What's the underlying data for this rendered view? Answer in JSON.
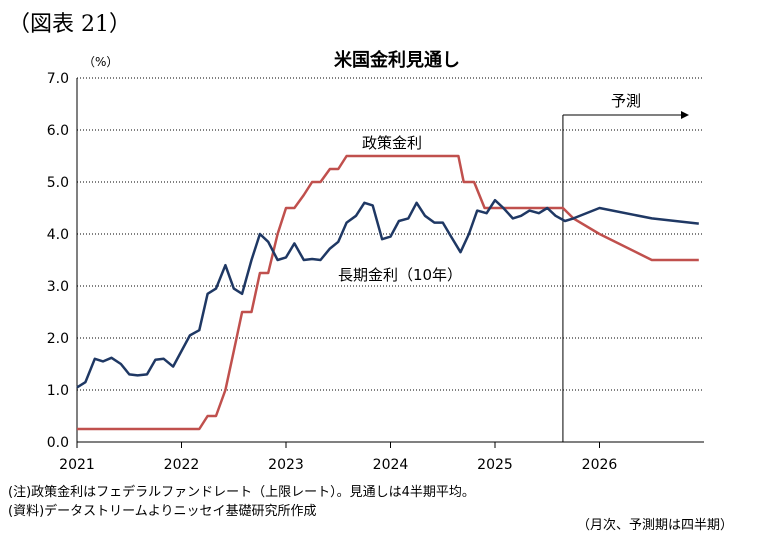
{
  "figure_label": "（図表 21）",
  "notes": {
    "line1": "(注)政策金利はフェデラルファンドレート（上限レート）。見通しは4半期平均。",
    "line2": "(資料)データストリームよりニッセイ基礎研究所作成",
    "right": "（月次、予測期は四半期）"
  },
  "colors": {
    "policy_rate": "#c0504d",
    "long_rate": "#1f3864",
    "grid": "#000000"
  },
  "chart_data": {
    "type": "line",
    "title": "米国金利見通し",
    "ylabel": "（%）",
    "xlabel": "",
    "ylim": [
      0,
      7
    ],
    "xlim": [
      2021,
      2027
    ],
    "yticks": [
      "0.0",
      "1.0",
      "2.0",
      "3.0",
      "4.0",
      "5.0",
      "6.0",
      "7.0"
    ],
    "xticks": [
      "2021",
      "2022",
      "2023",
      "2024",
      "2025",
      "2026"
    ],
    "grid": "horizontal-dotted",
    "legend": "inline-labels",
    "forecast_label": "予測",
    "forecast_start": 2025.65,
    "series": [
      {
        "name": "政策金利",
        "color": "#c0504d",
        "x": [
          2021.0,
          2022.1,
          2022.17,
          2022.25,
          2022.33,
          2022.42,
          2022.5,
          2022.58,
          2022.67,
          2022.75,
          2022.83,
          2022.92,
          2023.0,
          2023.08,
          2023.17,
          2023.25,
          2023.33,
          2023.42,
          2023.5,
          2023.58,
          2024.65,
          2024.7,
          2024.8,
          2024.9,
          2025.65,
          2025.75,
          2026.0,
          2026.5,
          2026.95
        ],
        "values": [
          0.25,
          0.25,
          0.25,
          0.5,
          0.5,
          1.0,
          1.75,
          2.5,
          2.5,
          3.25,
          3.25,
          4.0,
          4.5,
          4.5,
          4.75,
          5.0,
          5.0,
          5.25,
          5.25,
          5.5,
          5.5,
          5.0,
          5.0,
          4.5,
          4.5,
          4.3,
          4.0,
          3.5,
          3.5
        ]
      },
      {
        "name": "長期金利（10年）",
        "color": "#1f3864",
        "x": [
          2021.0,
          2021.08,
          2021.17,
          2021.25,
          2021.33,
          2021.42,
          2021.5,
          2021.58,
          2021.67,
          2021.75,
          2021.83,
          2021.92,
          2022.0,
          2022.08,
          2022.17,
          2022.25,
          2022.33,
          2022.42,
          2022.5,
          2022.58,
          2022.67,
          2022.75,
          2022.83,
          2022.92,
          2023.0,
          2023.08,
          2023.17,
          2023.25,
          2023.33,
          2023.42,
          2023.5,
          2023.58,
          2023.67,
          2023.75,
          2023.83,
          2023.92,
          2024.0,
          2024.08,
          2024.17,
          2024.25,
          2024.33,
          2024.42,
          2024.5,
          2024.58,
          2024.67,
          2024.75,
          2024.83,
          2024.92,
          2025.0,
          2025.08,
          2025.17,
          2025.25,
          2025.33,
          2025.42,
          2025.5,
          2025.58,
          2025.67,
          2025.75,
          2026.0,
          2026.5,
          2026.95
        ],
        "values": [
          1.05,
          1.15,
          1.6,
          1.55,
          1.62,
          1.5,
          1.3,
          1.28,
          1.3,
          1.58,
          1.6,
          1.45,
          1.75,
          2.05,
          2.15,
          2.85,
          2.95,
          3.4,
          2.95,
          2.85,
          3.5,
          4.0,
          3.85,
          3.5,
          3.55,
          3.82,
          3.5,
          3.52,
          3.5,
          3.72,
          3.85,
          4.22,
          4.35,
          4.6,
          4.55,
          3.9,
          3.95,
          4.25,
          4.3,
          4.6,
          4.35,
          4.22,
          4.22,
          3.95,
          3.65,
          4.0,
          4.45,
          4.4,
          4.65,
          4.5,
          4.3,
          4.35,
          4.45,
          4.4,
          4.5,
          4.35,
          4.25,
          4.3,
          4.5,
          4.3,
          4.2
        ]
      }
    ],
    "annotations": [
      {
        "text": "政策金利",
        "target": "政策金利"
      },
      {
        "text": "長期金利（10年）",
        "target": "長期金利（10年）"
      }
    ]
  }
}
